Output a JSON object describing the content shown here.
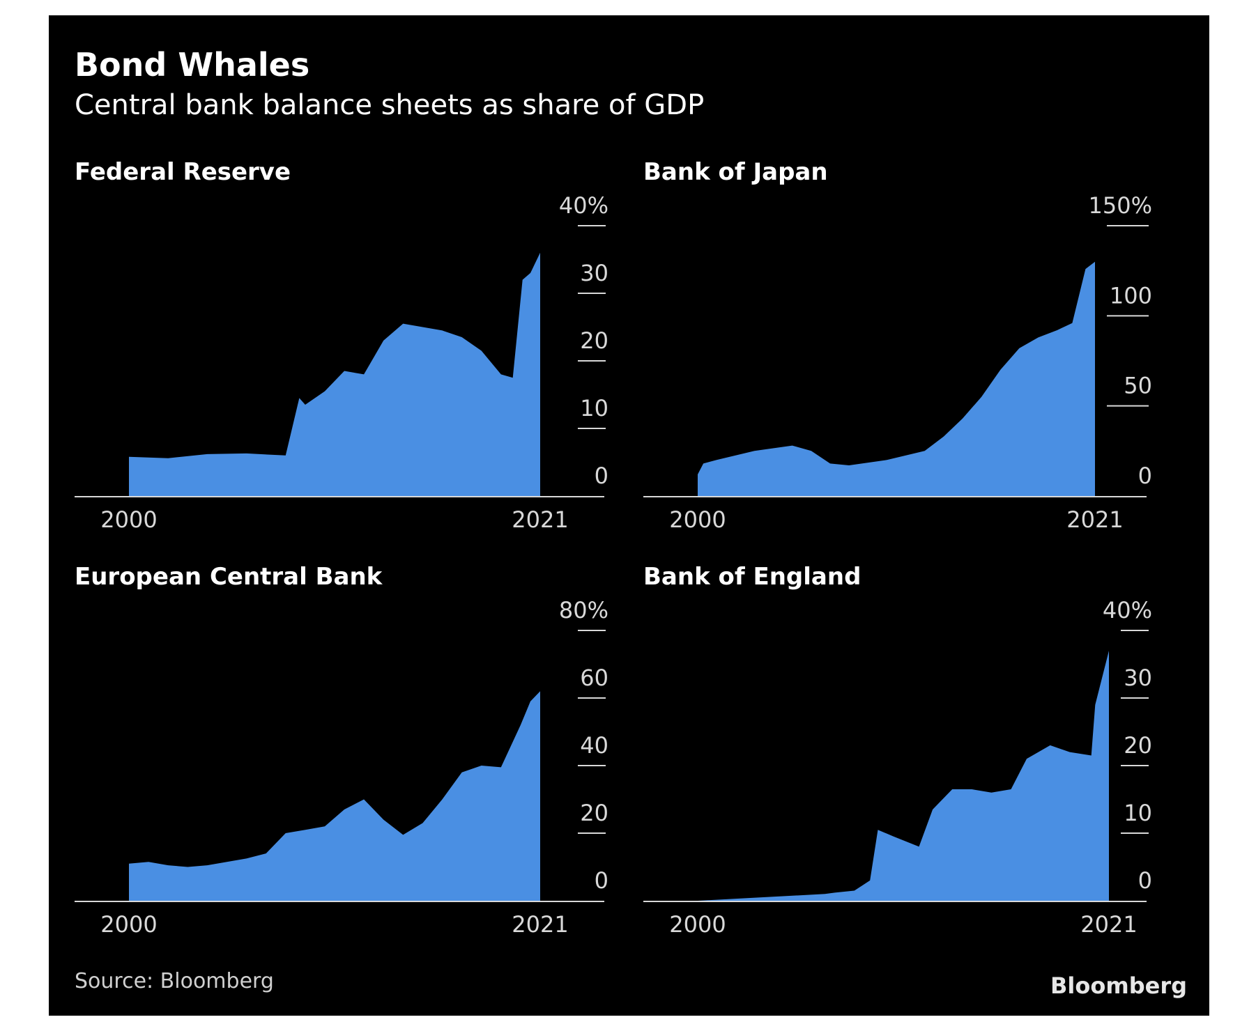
{
  "title": "Bond Whales",
  "subtitle": "Central bank balance sheets as share of GDP",
  "source": "Source: Bloomberg",
  "brand": "Bloomberg",
  "colors": {
    "background": "#000000",
    "fill": "#4a8fe3",
    "axis": "#d9d9d9",
    "text": "#ffffff"
  },
  "chart_data": [
    {
      "type": "area",
      "title": "Federal Reserve",
      "x": [
        2000,
        2002,
        2004,
        2006,
        2008,
        2008.7,
        2009,
        2010,
        2011,
        2012,
        2013,
        2014,
        2015,
        2016,
        2017,
        2018,
        2019,
        2019.6,
        2020.1,
        2020.5,
        2021
      ],
      "values": [
        5.8,
        5.6,
        6.2,
        6.3,
        6.0,
        14.5,
        13.5,
        15.5,
        18.5,
        18.0,
        23.0,
        25.5,
        25.0,
        24.5,
        23.5,
        21.5,
        18.0,
        17.5,
        32.0,
        33.0,
        36.0
      ],
      "x_ticks": [
        "2000",
        "2021"
      ],
      "y_ticks": [
        "0",
        "10",
        "20",
        "30",
        "40%"
      ],
      "ylim": [
        0,
        40
      ]
    },
    {
      "type": "area",
      "title": "Bank of Japan",
      "x": [
        2000,
        2000.3,
        2001,
        2003,
        2005,
        2006,
        2007,
        2008,
        2010,
        2012,
        2013,
        2014,
        2015,
        2016,
        2017,
        2018,
        2019,
        2019.8,
        2020.5,
        2021
      ],
      "values": [
        12,
        18,
        20,
        25,
        28,
        25,
        18,
        17,
        20,
        25,
        33,
        43,
        55,
        70,
        82,
        88,
        92,
        96,
        126,
        130
      ],
      "x_ticks": [
        "2000",
        "2021"
      ],
      "y_ticks": [
        "0",
        "50",
        "100",
        "150%"
      ],
      "ylim": [
        0,
        150
      ]
    },
    {
      "type": "area",
      "title": "European Central Bank",
      "x": [
        2000,
        2001,
        2002,
        2003,
        2004,
        2005,
        2006,
        2007,
        2008,
        2009,
        2010,
        2011,
        2012,
        2013,
        2014,
        2015,
        2016,
        2017,
        2018,
        2019,
        2020,
        2020.5,
        2021
      ],
      "values": [
        11,
        11.5,
        10.5,
        10,
        10.5,
        11.5,
        12.5,
        14,
        20,
        21,
        22,
        27,
        30,
        24,
        19.5,
        23,
        30,
        38,
        40,
        39.5,
        52,
        59,
        62
      ],
      "x_ticks": [
        "2000",
        "2021"
      ],
      "y_ticks": [
        "0",
        "20",
        "40",
        "60",
        "80%"
      ],
      "ylim": [
        0,
        80
      ]
    },
    {
      "type": "area",
      "title": "Bank of England",
      "x": [
        2000,
        2006.5,
        2007,
        2008,
        2008.8,
        2009.2,
        2010,
        2011.3,
        2012,
        2013,
        2014,
        2015,
        2016,
        2016.8,
        2018,
        2019,
        2020.1,
        2020.3,
        2021
      ],
      "values": [
        0,
        1,
        1.2,
        1.5,
        3.0,
        10.5,
        9.5,
        8.0,
        13.5,
        16.5,
        16.5,
        16.0,
        16.5,
        21.0,
        23.0,
        22.0,
        21.5,
        29.0,
        37.0
      ],
      "x_ticks": [
        "2000",
        "2021"
      ],
      "y_ticks": [
        "0",
        "10",
        "20",
        "30",
        "40%"
      ],
      "ylim": [
        0,
        40
      ]
    }
  ]
}
